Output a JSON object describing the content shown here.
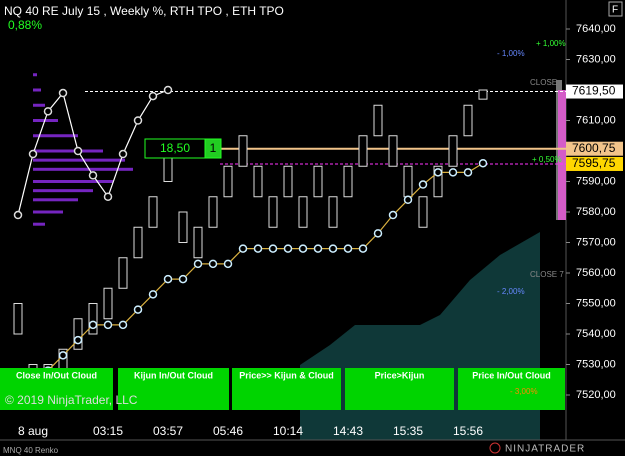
{
  "chart_data": {
    "type": "renko",
    "title": "NQ 40 RE July 15 , Weekly %, RTH TPO , ETH TPO",
    "change": "0,88%",
    "instrument": "MNQ 40 Renko",
    "copyright": "© 2019 NinjaTrader, LLC",
    "logo": "NINJATRADER",
    "panel_key": "F",
    "ylim": [
      7505,
      7650
    ],
    "yticks": [
      {
        "value": 7520,
        "label": "7520,00"
      },
      {
        "value": 7530,
        "label": "7530,00"
      },
      {
        "value": 7540,
        "label": "7540,00"
      },
      {
        "value": 7550,
        "label": "7550,00"
      },
      {
        "value": 7560,
        "label": "7560,00"
      },
      {
        "value": 7570,
        "label": "7570,00"
      },
      {
        "value": 7580,
        "label": "7580,00"
      },
      {
        "value": 7590,
        "label": "7590,00"
      },
      {
        "value": 7600,
        "label": "7600,00"
      },
      {
        "value": 7610,
        "label": "7610,00"
      },
      {
        "value": 7620,
        "label": "7620,00"
      },
      {
        "value": 7630,
        "label": "7630,00"
      },
      {
        "value": 7640,
        "label": "7640,00"
      }
    ],
    "categories": [
      null,
      "8 aug",
      null,
      null,
      null,
      null,
      "03:15",
      null,
      null,
      null,
      "03:57",
      null,
      null,
      null,
      "05:46",
      null,
      null,
      null,
      "10:14",
      null,
      null,
      null,
      "14:43",
      null,
      null,
      null,
      "15:35",
      null,
      null,
      null,
      "15:56",
      null
    ],
    "open": [
      7540,
      7530,
      7520,
      7525,
      7535,
      7540,
      7545,
      7555,
      7565,
      7575,
      7590,
      7580,
      7575,
      7575,
      7585,
      7595,
      7595,
      7585,
      7585,
      7585,
      7585,
      7585,
      7585,
      7595,
      7605,
      7605,
      7595,
      7575,
      7585,
      7595,
      7605,
      7617
    ],
    "close": [
      7550,
      7520,
      7530,
      7535,
      7545,
      7550,
      7555,
      7565,
      7575,
      7585,
      7600,
      7570,
      7565,
      7585,
      7595,
      7605,
      7585,
      7575,
      7595,
      7575,
      7595,
      7575,
      7595,
      7605,
      7615,
      7595,
      7585,
      7585,
      7595,
      7605,
      7615,
      7620
    ],
    "series": [
      {
        "color": "#ffffff",
        "values": [
          7579,
          7599,
          7613,
          7619,
          7600,
          7592,
          7585,
          7599,
          7610,
          7618,
          7620,
          null,
          null,
          null,
          null,
          null,
          null,
          null,
          null,
          null,
          null,
          null,
          null,
          null,
          null,
          null,
          null,
          null,
          null,
          null,
          null,
          null
        ]
      },
      {
        "color": "#d9b040",
        "values": [
          null,
          7523,
          7528,
          7533,
          7538,
          7543,
          7543,
          7543,
          7548,
          7553,
          7558,
          7558,
          7563,
          7563,
          7563,
          7568,
          7568,
          7568,
          7568,
          7568,
          7568,
          7568,
          7568,
          7568,
          7573,
          7579,
          7584,
          7589,
          7593,
          7593,
          7593,
          7596
        ]
      }
    ],
    "profile": {
      "color": "#8a2be2",
      "levels": [
        7625,
        7620,
        7615,
        7610,
        7605,
        7600,
        7597,
        7594,
        7590,
        7587,
        7584,
        7580,
        7576
      ],
      "values": [
        4,
        8,
        12,
        25,
        45,
        70,
        92,
        100,
        80,
        60,
        45,
        30,
        12
      ]
    },
    "price_tags": [
      {
        "value": 7619.5,
        "label": "7619,50",
        "color": "#ffffff",
        "line": "#ffffff"
      },
      {
        "value": 7600.75,
        "label": "7600,75",
        "color": "#f2c48a",
        "line": "#f2c48a"
      },
      {
        "value": 7595.75,
        "label": "7595,75",
        "color": "#ffd700",
        "line": "#ff33ff"
      }
    ],
    "annotations": [
      "+ 1,00%",
      "- 1,00%",
      "CLOSE",
      "+ 0,50%",
      "CLOSE 7",
      "- 2,00%",
      "- 3,00%"
    ],
    "box": {
      "value": "18,50",
      "count": "1"
    },
    "buttons": [
      "Close In/Out Cloud",
      "Kijun In/Out Cloud",
      "Price>> Kijun & Cloud",
      "Price>Kijun",
      "Price In/Out Cloud"
    ]
  }
}
